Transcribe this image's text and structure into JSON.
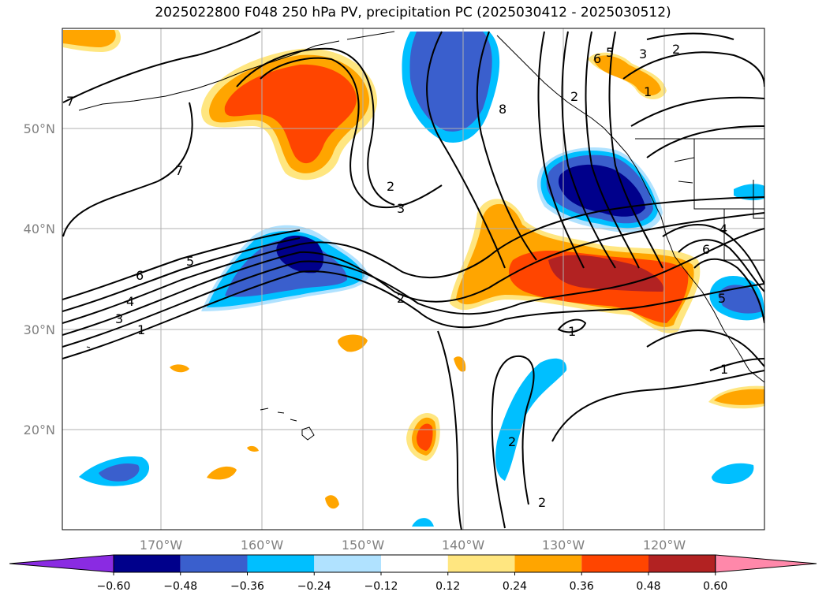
{
  "title": "2025022800 F048 250 hPa PV, precipitation PC (2025030412 - 2025030512)",
  "map": {
    "lon_labels": [
      "170°W",
      "160°W",
      "150°W",
      "140°W",
      "130°W",
      "120°W"
    ],
    "lat_labels": [
      "50°N",
      "40°N",
      "30°N",
      "20°N"
    ],
    "pv_contour_labels": [
      "7",
      "7",
      "6",
      "5",
      "4",
      "3",
      "1",
      "2",
      "3",
      "2",
      "8",
      "2",
      "1",
      "6",
      "5",
      "3",
      "2",
      "1",
      "4",
      "6",
      "5",
      "1",
      "2",
      "2"
    ]
  },
  "colorbar": {
    "ticks": [
      "−0.60",
      "−0.48",
      "−0.36",
      "−0.24",
      "−0.12",
      "0.12",
      "0.24",
      "0.36",
      "0.48",
      "0.60"
    ],
    "colors": [
      "#8a2be2",
      "#00008b",
      "#3a5fcd",
      "#00bfff",
      "#b0e2ff",
      "#ffffff",
      "#ffe680",
      "#ffa500",
      "#ff4500",
      "#b22222",
      "#ff88aa"
    ]
  }
}
